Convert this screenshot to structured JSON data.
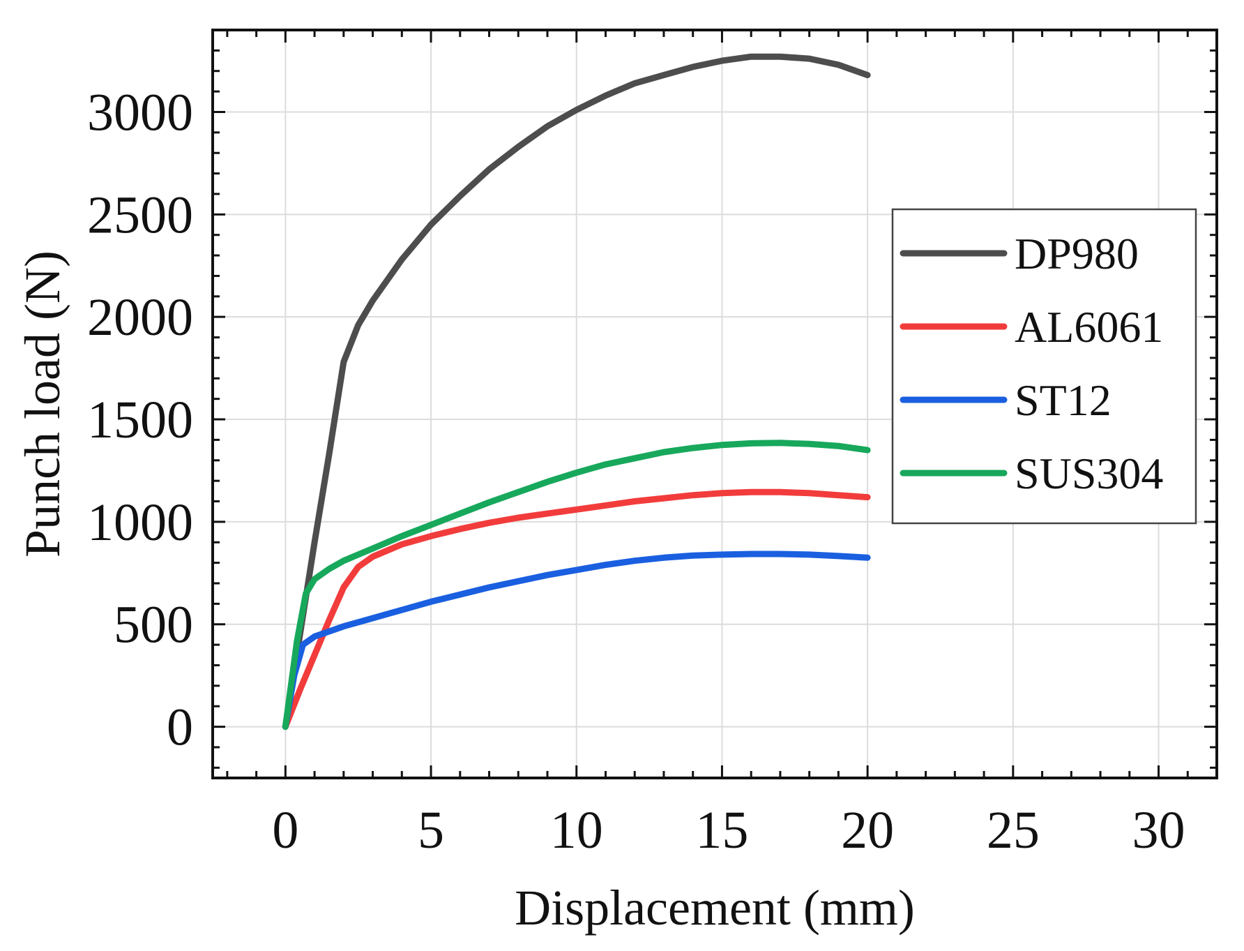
{
  "chart_data": {
    "type": "line",
    "title": "",
    "xlabel": "Displacement (mm)",
    "ylabel": "Punch load (N)",
    "xlim": [
      -2.5,
      32
    ],
    "ylim": [
      -250,
      3400
    ],
    "xticks": [
      0,
      5,
      10,
      15,
      20,
      25,
      30
    ],
    "xtick_labels": [
      "0",
      "5",
      "10",
      "15",
      "20",
      "25",
      "30"
    ],
    "yticks": [
      0,
      500,
      1000,
      1500,
      2000,
      2500,
      3000
    ],
    "ytick_labels": [
      "0",
      "500",
      "1000",
      "1500",
      "2000",
      "2500",
      "3000"
    ],
    "grid": true,
    "legend_position": "right",
    "series": [
      {
        "name": "DP980",
        "color": "#4d4d4d",
        "x": [
          0,
          0.5,
          1,
          1.5,
          2,
          2.5,
          3,
          4,
          5,
          6,
          7,
          8,
          9,
          10,
          11,
          12,
          13,
          14,
          15,
          16,
          17,
          18,
          19,
          20
        ],
        "y": [
          0,
          450,
          900,
          1330,
          1780,
          1960,
          2080,
          2280,
          2450,
          2590,
          2720,
          2830,
          2930,
          3010,
          3080,
          3140,
          3180,
          3220,
          3250,
          3270,
          3270,
          3260,
          3230,
          3180
        ]
      },
      {
        "name": "AL6061",
        "color": "#f23c3c",
        "x": [
          0,
          0.5,
          1,
          1.5,
          2,
          2.5,
          3,
          4,
          5,
          6,
          7,
          8,
          9,
          10,
          11,
          12,
          13,
          14,
          15,
          16,
          17,
          18,
          19,
          20
        ],
        "y": [
          0,
          180,
          350,
          520,
          680,
          780,
          830,
          890,
          930,
          965,
          995,
          1020,
          1040,
          1060,
          1080,
          1100,
          1115,
          1130,
          1140,
          1145,
          1145,
          1140,
          1130,
          1120
        ]
      },
      {
        "name": "ST12",
        "color": "#1a5fe0",
        "x": [
          0,
          0.3,
          0.6,
          1,
          1.5,
          2,
          3,
          4,
          5,
          6,
          7,
          8,
          9,
          10,
          11,
          12,
          13,
          14,
          15,
          16,
          17,
          18,
          19,
          20
        ],
        "y": [
          0,
          250,
          400,
          440,
          465,
          490,
          530,
          570,
          610,
          645,
          680,
          710,
          740,
          765,
          790,
          810,
          825,
          835,
          840,
          843,
          843,
          840,
          833,
          825
        ]
      },
      {
        "name": "SUS304",
        "color": "#17a85c",
        "x": [
          0,
          0.4,
          0.7,
          1,
          1.5,
          2,
          3,
          4,
          5,
          6,
          7,
          8,
          9,
          10,
          11,
          12,
          13,
          14,
          15,
          16,
          17,
          18,
          19,
          20
        ],
        "y": [
          0,
          420,
          650,
          720,
          770,
          810,
          870,
          930,
          985,
          1040,
          1095,
          1145,
          1195,
          1240,
          1280,
          1310,
          1340,
          1360,
          1375,
          1383,
          1385,
          1380,
          1370,
          1350
        ]
      }
    ]
  }
}
